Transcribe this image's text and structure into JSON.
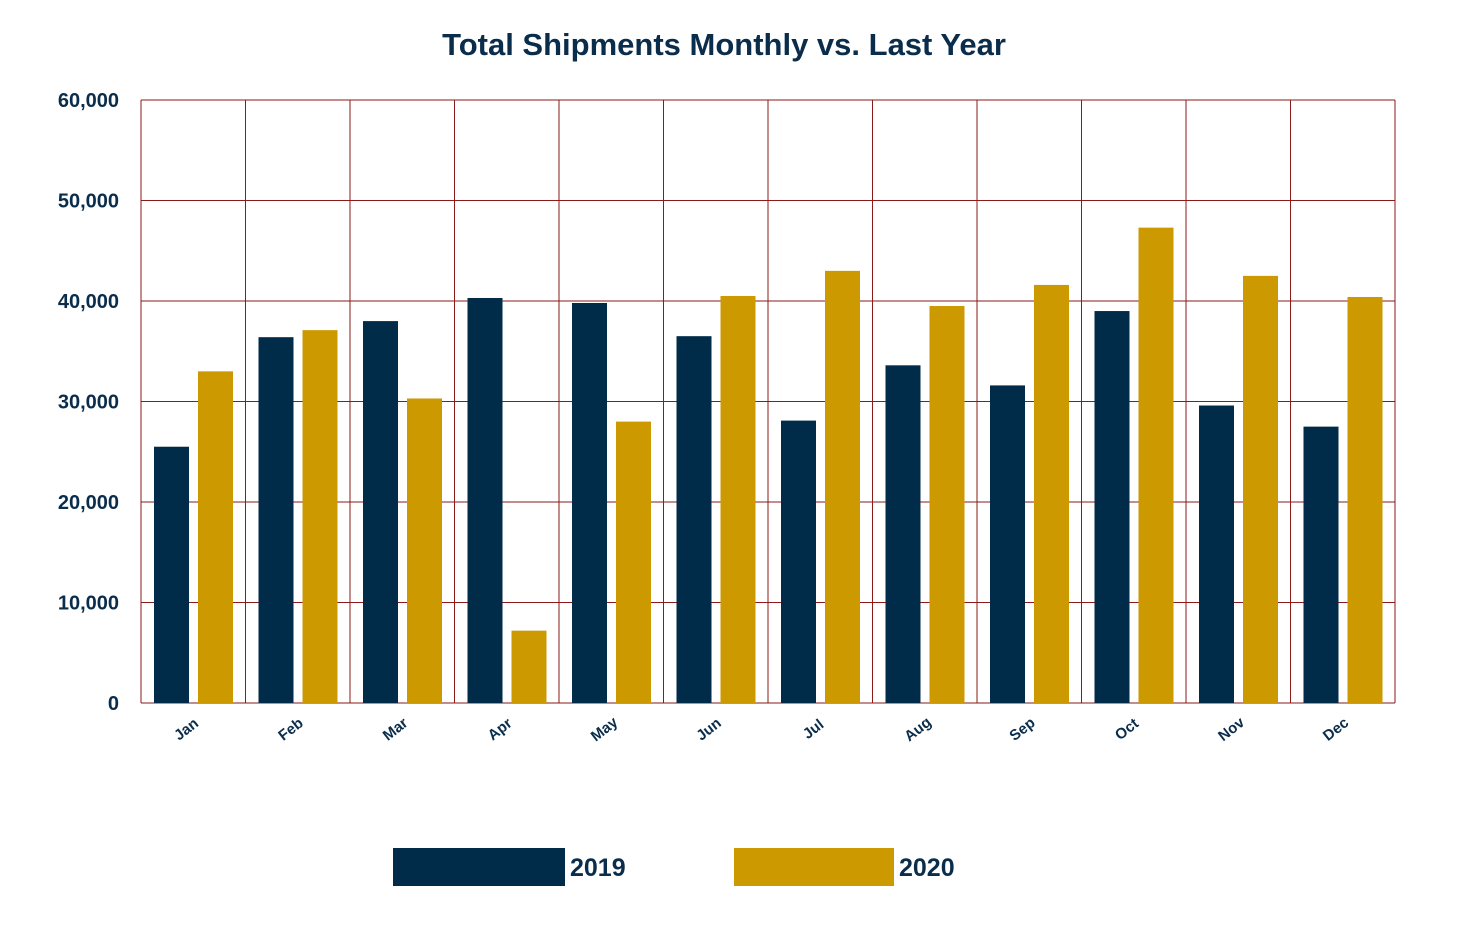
{
  "chart_data": {
    "type": "bar",
    "title": "Total Shipments Monthly vs. Last Year",
    "xlabel": "",
    "ylabel": "",
    "categories": [
      "Jan",
      "Feb",
      "Mar",
      "Apr",
      "May",
      "Jun",
      "Jul",
      "Aug",
      "Sep",
      "Oct",
      "Nov",
      "Dec"
    ],
    "series": [
      {
        "name": "2019",
        "color": "#002b49",
        "values": [
          25500,
          36400,
          38000,
          40300,
          39800,
          36500,
          28100,
          33600,
          31600,
          39000,
          29600,
          27500
        ]
      },
      {
        "name": "2020",
        "color": "#cc9900",
        "values": [
          33000,
          37100,
          30300,
          7200,
          28000,
          40500,
          43000,
          39500,
          41600,
          47300,
          42500,
          40400
        ]
      }
    ],
    "ylim": [
      0,
      60000
    ],
    "yticks": [
      0,
      10000,
      20000,
      30000,
      40000,
      50000,
      60000
    ],
    "ytick_labels": [
      "0",
      "10,000",
      "20,000",
      "30,000",
      "40,000",
      "50,000",
      "60,000"
    ],
    "grid": true,
    "grid_color": "#8b1a1a",
    "legend_position": "bottom-center"
  }
}
